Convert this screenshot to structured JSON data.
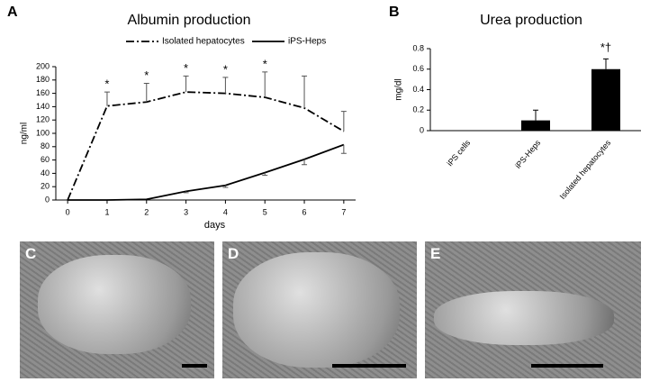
{
  "chart_data": [
    {
      "type": "line",
      "panel_label": "A",
      "title": "Albumin production",
      "xlabel": "days",
      "ylabel": "ng/ml",
      "x": [
        0,
        1,
        2,
        3,
        4,
        5,
        6,
        7
      ],
      "xlim": [
        -0.3,
        7.3
      ],
      "xticks": [
        0,
        1,
        2,
        3,
        4,
        5,
        6,
        7
      ],
      "ylim": [
        0,
        200
      ],
      "yticks": [
        0,
        20,
        40,
        60,
        80,
        100,
        120,
        140,
        160,
        180,
        200
      ],
      "series": [
        {
          "name": "Isolated hepatocytes",
          "color": "#000000",
          "linestyle": "dash-dot",
          "error_direction": "up",
          "values": [
            0,
            141,
            147,
            162,
            160,
            154,
            138,
            103
          ],
          "errors": [
            null,
            21,
            28,
            24,
            24,
            38,
            48,
            30
          ]
        },
        {
          "name": "iPS-Heps",
          "color": "#000000",
          "linestyle": "solid",
          "error_direction": "down",
          "values": [
            0,
            0,
            1,
            13,
            22,
            41,
            61,
            83
          ],
          "errors": [
            null,
            null,
            null,
            2,
            3,
            4,
            8,
            13
          ]
        }
      ],
      "annotations": [
        {
          "x": 1,
          "text": "*"
        },
        {
          "x": 2,
          "text": "*"
        },
        {
          "x": 3,
          "text": "*"
        },
        {
          "x": 4,
          "text": "*"
        },
        {
          "x": 5,
          "text": "*"
        }
      ]
    },
    {
      "type": "bar",
      "panel_label": "B",
      "title": "Urea production",
      "ylabel": "mg/dl",
      "color": "#000000",
      "categories": [
        "iPS cells",
        "iPS-Heps",
        "Isolated hepatocytes"
      ],
      "values": [
        0,
        0.1,
        0.6
      ],
      "errors": [
        null,
        0.1,
        0.1
      ],
      "ylim": [
        0,
        0.8
      ],
      "yticks": [
        0,
        0.2,
        0.4,
        0.6,
        0.8
      ],
      "annotations": [
        {
          "category": "Isolated hepatocytes",
          "text": "*†"
        }
      ]
    }
  ],
  "images": [
    {
      "label": "C"
    },
    {
      "label": "D"
    },
    {
      "label": "E"
    }
  ]
}
